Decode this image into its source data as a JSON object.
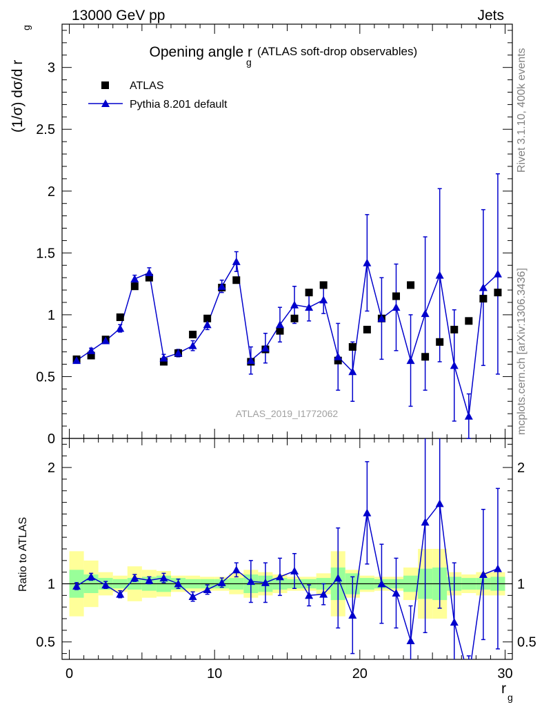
{
  "header": {
    "left": "13000 GeV pp",
    "right": "Jets"
  },
  "side_labels": {
    "rivet": "Rivet 3.1.10,  400k events",
    "mcplots": "mcplots.cern.ch [arXiv:1306.3436]"
  },
  "chart_data": {
    "type": "scatter",
    "title_main": "Opening angle r",
    "title_sub": "g",
    "title_suffix": "(ATLAS soft-drop observables)",
    "ylabel": "(1/σ) dσ/d r",
    "ylabel_sub": "g",
    "xlabel": "r",
    "xlabel_sub": "g",
    "analysis_id": "ATLAS_2019_I1772062",
    "ratio_ylabel": "Ratio to ATLAS",
    "xlim": [
      -0.5,
      30.5
    ],
    "ylim": [
      0,
      3.35
    ],
    "ratio_ylim": [
      0.35,
      2.25
    ],
    "x_ticks": [
      "0",
      "10",
      "20",
      "30"
    ],
    "y_ticks": [
      "0",
      "0.5",
      "1",
      "1.5",
      "2",
      "2.5",
      "3"
    ],
    "ratio_ticks": [
      "0.5",
      "1",
      "2"
    ],
    "colors": {
      "data": "#000000",
      "mc": "#0000cc",
      "band_inner": "#99ff99",
      "band_outer": "#ffff99"
    },
    "legend": [
      "ATLAS",
      "Pythia 8.201 default"
    ],
    "x": [
      0.5,
      1.5,
      2.5,
      3.5,
      4.5,
      5.5,
      6.5,
      7.5,
      8.5,
      9.5,
      10.5,
      11.5,
      12.5,
      13.5,
      14.5,
      15.5,
      16.5,
      17.5,
      18.5,
      19.5,
      20.5,
      21.5,
      22.5,
      23.5,
      24.5,
      25.5,
      26.5,
      27.5,
      28.5,
      29.5
    ],
    "series": [
      {
        "name": "ATLAS",
        "values": [
          0.64,
          0.67,
          0.8,
          0.98,
          1.23,
          1.3,
          0.62,
          0.69,
          0.84,
          0.97,
          1.22,
          1.28,
          0.62,
          0.72,
          0.87,
          0.97,
          1.18,
          1.24,
          0.63,
          0.74,
          0.88,
          0.97,
          1.15,
          1.24,
          0.66,
          0.78,
          0.88,
          0.95,
          1.13,
          1.18
        ]
      },
      {
        "name": "Pythia 8.201 default",
        "values": [
          0.63,
          0.71,
          0.79,
          0.89,
          1.29,
          1.34,
          0.65,
          0.69,
          0.75,
          0.92,
          1.23,
          1.43,
          0.63,
          0.73,
          0.92,
          1.08,
          1.06,
          1.12,
          0.66,
          0.54,
          1.42,
          0.97,
          1.06,
          0.63,
          1.01,
          1.32,
          0.59,
          0.18,
          1.22,
          1.33
        ],
        "errors": [
          0.02,
          0.02,
          0.02,
          0.03,
          0.03,
          0.04,
          0.03,
          0.03,
          0.04,
          0.04,
          0.05,
          0.08,
          0.11,
          0.12,
          0.14,
          0.15,
          0.11,
          0.11,
          0.27,
          0.24,
          0.39,
          0.33,
          0.35,
          0.37,
          0.62,
          0.7,
          0.45,
          0.18,
          0.63,
          0.81
        ]
      }
    ],
    "ratio": {
      "values": [
        0.98,
        1.06,
        0.99,
        0.91,
        1.05,
        1.03,
        1.05,
        1.0,
        0.89,
        0.95,
        1.01,
        1.12,
        1.02,
        1.01,
        1.06,
        1.11,
        0.9,
        0.91,
        1.05,
        0.73,
        1.61,
        1.0,
        0.92,
        0.51,
        1.53,
        1.69,
        0.67,
        0.19,
        1.08,
        1.13
      ],
      "errors": [
        0.03,
        0.03,
        0.03,
        0.03,
        0.03,
        0.03,
        0.04,
        0.04,
        0.04,
        0.04,
        0.04,
        0.06,
        0.18,
        0.17,
        0.16,
        0.15,
        0.09,
        0.09,
        0.43,
        0.33,
        0.44,
        0.34,
        0.3,
        0.3,
        0.95,
        0.9,
        0.51,
        0.19,
        0.56,
        0.69
      ],
      "band_inner": [
        0.12,
        0.08,
        0.05,
        0.04,
        0.05,
        0.06,
        0.07,
        0.05,
        0.04,
        0.04,
        0.04,
        0.05,
        0.08,
        0.07,
        0.05,
        0.04,
        0.04,
        0.05,
        0.14,
        0.09,
        0.05,
        0.04,
        0.04,
        0.07,
        0.13,
        0.14,
        0.06,
        0.05,
        0.05,
        0.06
      ],
      "band_outer": [
        0.28,
        0.2,
        0.1,
        0.07,
        0.15,
        0.12,
        0.11,
        0.07,
        0.07,
        0.06,
        0.06,
        0.09,
        0.12,
        0.1,
        0.08,
        0.06,
        0.06,
        0.09,
        0.28,
        0.12,
        0.07,
        0.06,
        0.06,
        0.14,
        0.3,
        0.3,
        0.1,
        0.08,
        0.1,
        0.1
      ]
    }
  }
}
